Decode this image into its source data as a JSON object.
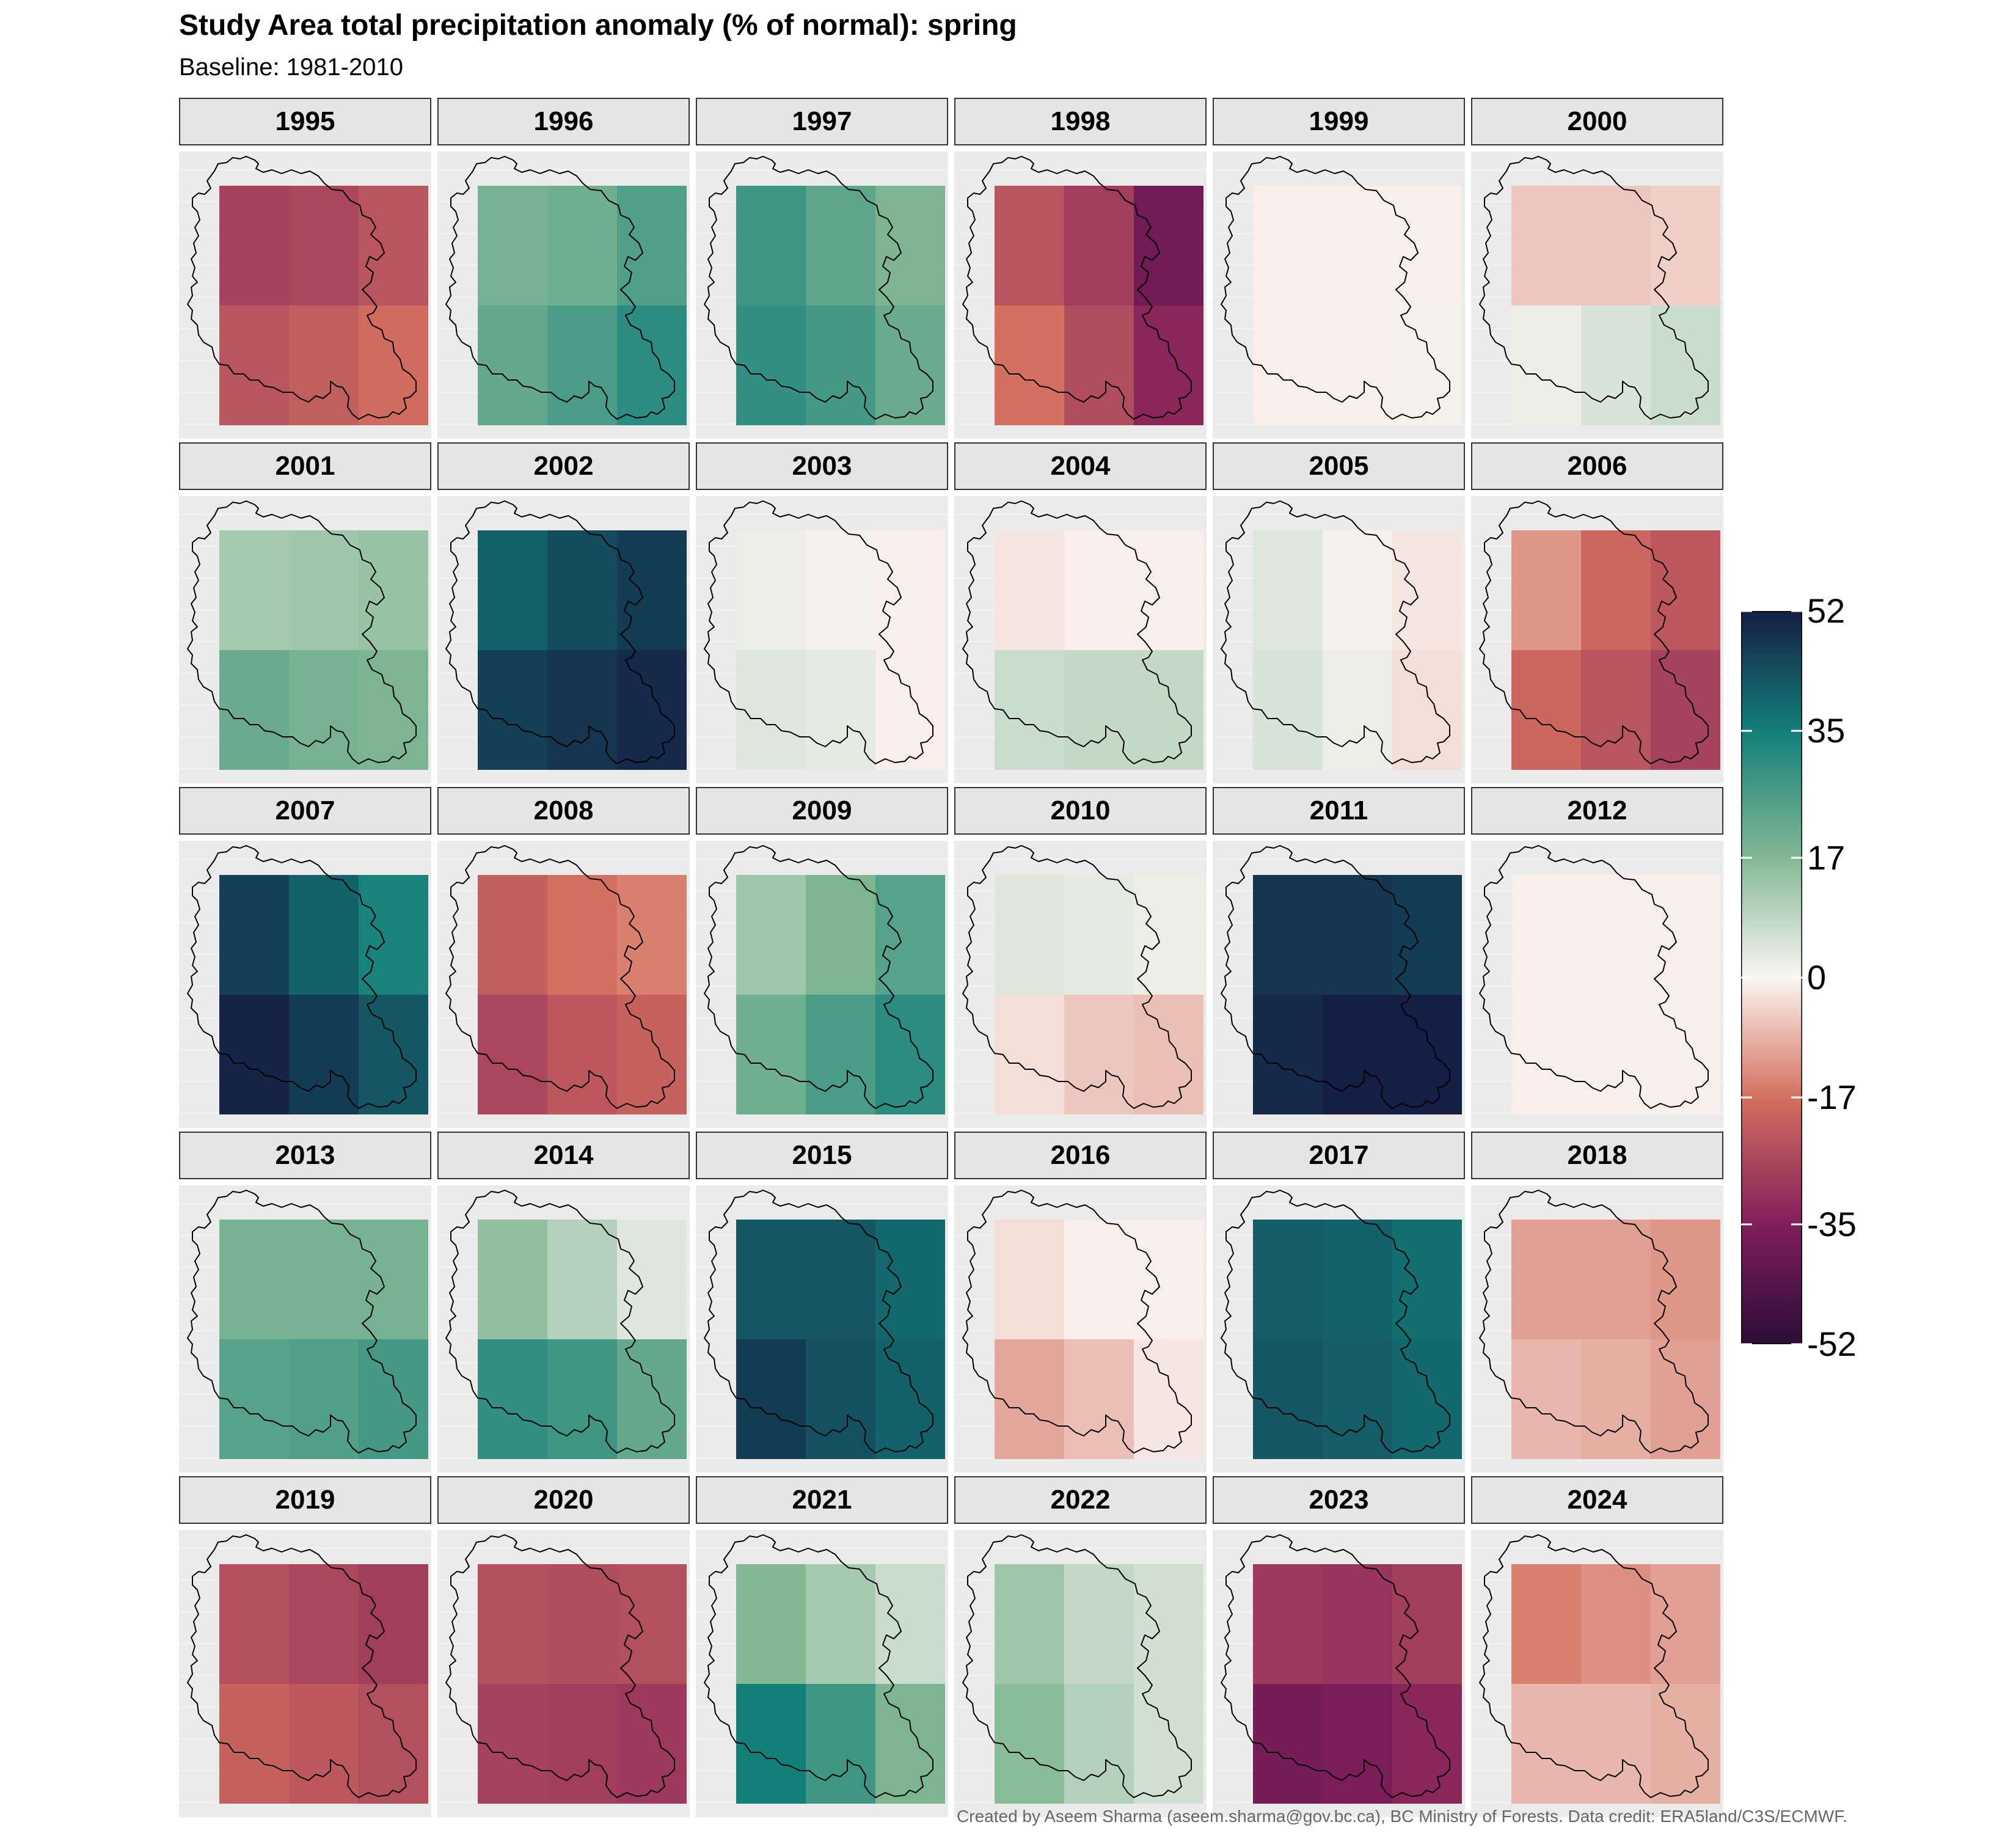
{
  "title": "Study Area total precipitation anomaly (% of normal): spring",
  "subtitle": "Baseline: 1981-2010",
  "caption": "Created by Aseem Sharma (aseem.sharma@gov.bc.ca), BC Ministry of Forests. Data credit: ERA5land/C3S/ECMWF.",
  "chart_data": {
    "type": "heatmap",
    "description_grid": "each panel is a 2-row x 3-column grid of anomaly values; row 0 = north, row 1 = south; columns west to east",
    "legend": {
      "position": "right",
      "ticks": [
        "52",
        "35",
        "17",
        "0",
        "-17",
        "-35",
        "-52"
      ],
      "tick_values": [
        52,
        35,
        17,
        0,
        -17,
        -35,
        -52
      ],
      "range": [
        -52,
        52
      ]
    },
    "colormap": {
      "stops": [
        {
          "v": -52,
          "color": "#2a0d35"
        },
        {
          "v": -35,
          "color": "#801e5b"
        },
        {
          "v": -17,
          "color": "#d4705f"
        },
        {
          "v": 0,
          "color": "#fbf6f2"
        },
        {
          "v": 17,
          "color": "#83b895"
        },
        {
          "v": 35,
          "color": "#137f79"
        },
        {
          "v": 52,
          "color": "#151e44"
        }
      ]
    },
    "panels": [
      {
        "year": "1995",
        "values": [
          [
            -27,
            -26,
            -23
          ],
          [
            -23,
            -21,
            -18
          ]
        ]
      },
      {
        "year": "1996",
        "values": [
          [
            19,
            20,
            25
          ],
          [
            22,
            26,
            31
          ]
        ]
      },
      {
        "year": "1997",
        "values": [
          [
            28,
            23,
            18
          ],
          [
            30,
            27,
            21
          ]
        ]
      },
      {
        "year": "1998",
        "values": [
          [
            -23,
            -28,
            -38
          ],
          [
            -17,
            -25,
            -33
          ]
        ]
      },
      {
        "year": "1999",
        "values": [
          [
            -1,
            -1,
            -1
          ],
          [
            -1,
            -1,
            1
          ]
        ]
      },
      {
        "year": "2000",
        "values": [
          [
            -6,
            -6,
            -5
          ],
          [
            2,
            5,
            7
          ]
        ]
      },
      {
        "year": "2001",
        "values": [
          [
            12,
            13,
            14
          ],
          [
            21,
            19,
            18
          ]
        ]
      },
      {
        "year": "2002",
        "values": [
          [
            40,
            44,
            47
          ],
          [
            46,
            48,
            50
          ]
        ]
      },
      {
        "year": "2003",
        "values": [
          [
            2,
            1,
            -1
          ],
          [
            4,
            3,
            -1
          ]
        ]
      },
      {
        "year": "2004",
        "values": [
          [
            -2,
            -1,
            -1
          ],
          [
            7,
            8,
            8
          ]
        ]
      },
      {
        "year": "2005",
        "values": [
          [
            4,
            1,
            -2
          ],
          [
            5,
            2,
            -3
          ]
        ]
      },
      {
        "year": "2006",
        "values": [
          [
            -12,
            -19,
            -22
          ],
          [
            -19,
            -23,
            -27
          ]
        ]
      },
      {
        "year": "2007",
        "values": [
          [
            46,
            40,
            34
          ],
          [
            51,
            47,
            42
          ]
        ]
      },
      {
        "year": "2008",
        "values": [
          [
            -21,
            -17,
            -15
          ],
          [
            -26,
            -22,
            -20
          ]
        ]
      },
      {
        "year": "2009",
        "values": [
          [
            13,
            18,
            24
          ],
          [
            20,
            26,
            31
          ]
        ]
      },
      {
        "year": "2010",
        "values": [
          [
            4,
            3,
            2
          ],
          [
            -3,
            -6,
            -7
          ]
        ]
      },
      {
        "year": "2011",
        "values": [
          [
            48,
            48,
            47
          ],
          [
            50,
            52,
            52
          ]
        ]
      },
      {
        "year": "2012",
        "values": [
          [
            -1,
            -1,
            -1
          ],
          [
            -1,
            -1,
            -1
          ]
        ]
      },
      {
        "year": "2013",
        "values": [
          [
            19,
            19,
            19
          ],
          [
            24,
            25,
            27
          ]
        ]
      },
      {
        "year": "2014",
        "values": [
          [
            15,
            10,
            4
          ],
          [
            30,
            28,
            22
          ]
        ]
      },
      {
        "year": "2015",
        "values": [
          [
            42,
            42,
            39
          ],
          [
            47,
            43,
            40
          ]
        ]
      },
      {
        "year": "2016",
        "values": [
          [
            -3,
            -1,
            -1
          ],
          [
            -10,
            -7,
            -2
          ]
        ]
      },
      {
        "year": "2017",
        "values": [
          [
            41,
            40,
            38
          ],
          [
            42,
            41,
            39
          ]
        ]
      },
      {
        "year": "2018",
        "values": [
          [
            -11,
            -11,
            -12
          ],
          [
            -8,
            -9,
            -11
          ]
        ]
      },
      {
        "year": "2019",
        "values": [
          [
            -24,
            -26,
            -28
          ],
          [
            -20,
            -22,
            -24
          ]
        ]
      },
      {
        "year": "2020",
        "values": [
          [
            -24,
            -25,
            -24
          ],
          [
            -27,
            -28,
            -29
          ]
        ]
      },
      {
        "year": "2021",
        "values": [
          [
            17,
            12,
            7
          ],
          [
            35,
            28,
            18
          ]
        ]
      },
      {
        "year": "2022",
        "values": [
          [
            13,
            8,
            6
          ],
          [
            16,
            10,
            6
          ]
        ]
      },
      {
        "year": "2023",
        "values": [
          [
            -29,
            -30,
            -28
          ],
          [
            -37,
            -36,
            -33
          ]
        ]
      },
      {
        "year": "2024",
        "values": [
          [
            -15,
            -13,
            -11
          ],
          [
            -8,
            -8,
            -9
          ]
        ]
      }
    ]
  }
}
